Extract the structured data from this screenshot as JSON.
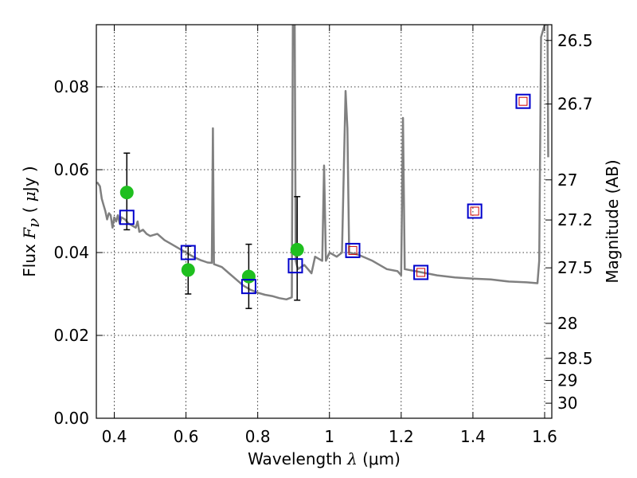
{
  "chart_data": {
    "type": "scatter",
    "title": "",
    "xlabel": "Wavelength  λ (μm)",
    "xlabel_parts": {
      "text": "Wavelength  ",
      "symbol": "λ",
      "unit": " (μm)"
    },
    "ylabel": "Flux  Fν  ( μJy )",
    "ylabel_parts": {
      "text": "Flux  ",
      "symbol": "F",
      "sub": "ν",
      "unit_open": "  ( ",
      "unit_mu": "μ",
      "unit_rest": "Jy )"
    },
    "y2label": "Magnitude (AB)",
    "xlim": [
      0.35,
      1.62
    ],
    "ylim": [
      0.0,
      0.095
    ],
    "grid": true,
    "x_ticks": [
      0.4,
      0.6,
      0.8,
      1.0,
      1.2,
      1.4,
      1.6
    ],
    "x_tick_labels": [
      "0.4",
      "0.6",
      "0.8",
      "1",
      "1.2",
      "1.4",
      "1.6"
    ],
    "y_ticks": [
      0.0,
      0.02,
      0.04,
      0.06,
      0.08
    ],
    "y_tick_labels": [
      "0.00",
      "0.02",
      "0.04",
      "0.06",
      "0.08"
    ],
    "y2_ticks": [
      {
        "mag": 26.5,
        "label": "26.5"
      },
      {
        "mag": 26.7,
        "label": "26.7"
      },
      {
        "mag": 27.0,
        "label": "27"
      },
      {
        "mag": 27.2,
        "label": "27.2"
      },
      {
        "mag": 27.5,
        "label": "27.5"
      },
      {
        "mag": 28.0,
        "label": "28"
      },
      {
        "mag": 28.5,
        "label": "28.5"
      },
      {
        "mag": 29.0,
        "label": "29"
      },
      {
        "mag": 30.0,
        "label": "30"
      }
    ],
    "colors": {
      "model": "#808080",
      "observed": "#1fbf1f",
      "model_box": "#0000cc",
      "model_box_inner": "#cc0000",
      "errorbar": "#000000"
    },
    "model_spectrum": [
      [
        0.352,
        0.057
      ],
      [
        0.36,
        0.056
      ],
      [
        0.365,
        0.053
      ],
      [
        0.37,
        0.0515
      ],
      [
        0.375,
        0.05
      ],
      [
        0.38,
        0.048
      ],
      [
        0.385,
        0.0495
      ],
      [
        0.39,
        0.049
      ],
      [
        0.395,
        0.046
      ],
      [
        0.4,
        0.0485
      ],
      [
        0.405,
        0.0475
      ],
      [
        0.41,
        0.049
      ],
      [
        0.415,
        0.047
      ],
      [
        0.42,
        0.0485
      ],
      [
        0.43,
        0.048
      ],
      [
        0.44,
        0.047
      ],
      [
        0.45,
        0.0465
      ],
      [
        0.46,
        0.046
      ],
      [
        0.465,
        0.0475
      ],
      [
        0.47,
        0.045
      ],
      [
        0.48,
        0.0455
      ],
      [
        0.49,
        0.0445
      ],
      [
        0.5,
        0.044
      ],
      [
        0.52,
        0.0445
      ],
      [
        0.54,
        0.043
      ],
      [
        0.56,
        0.042
      ],
      [
        0.58,
        0.041
      ],
      [
        0.6,
        0.04
      ],
      [
        0.62,
        0.039
      ],
      [
        0.64,
        0.0382
      ],
      [
        0.66,
        0.0376
      ],
      [
        0.672,
        0.0375
      ],
      [
        0.675,
        0.07
      ],
      [
        0.678,
        0.0372
      ],
      [
        0.7,
        0.0365
      ],
      [
        0.72,
        0.035
      ],
      [
        0.74,
        0.0335
      ],
      [
        0.76,
        0.032
      ],
      [
        0.78,
        0.031
      ],
      [
        0.8,
        0.0303
      ],
      [
        0.82,
        0.0298
      ],
      [
        0.84,
        0.0295
      ],
      [
        0.86,
        0.029
      ],
      [
        0.88,
        0.0287
      ],
      [
        0.895,
        0.0292
      ],
      [
        0.898,
        0.095
      ],
      [
        0.903,
        0.095
      ],
      [
        0.906,
        0.038
      ],
      [
        0.912,
        0.036
      ],
      [
        0.93,
        0.037
      ],
      [
        0.95,
        0.035
      ],
      [
        0.96,
        0.039
      ],
      [
        0.98,
        0.038
      ],
      [
        0.985,
        0.061
      ],
      [
        0.99,
        0.038
      ],
      [
        1.0,
        0.04
      ],
      [
        1.02,
        0.039
      ],
      [
        1.035,
        0.04
      ],
      [
        1.04,
        0.06
      ],
      [
        1.045,
        0.079
      ],
      [
        1.05,
        0.07
      ],
      [
        1.055,
        0.04
      ],
      [
        1.08,
        0.0395
      ],
      [
        1.12,
        0.038
      ],
      [
        1.16,
        0.036
      ],
      [
        1.19,
        0.0355
      ],
      [
        1.2,
        0.0345
      ],
      [
        1.205,
        0.0725
      ],
      [
        1.21,
        0.036
      ],
      [
        1.24,
        0.0355
      ],
      [
        1.3,
        0.0345
      ],
      [
        1.35,
        0.034
      ],
      [
        1.4,
        0.0337
      ],
      [
        1.45,
        0.0335
      ],
      [
        1.5,
        0.033
      ],
      [
        1.55,
        0.0328
      ],
      [
        1.58,
        0.0326
      ],
      [
        1.585,
        0.038
      ],
      [
        1.59,
        0.092
      ],
      [
        1.6,
        0.095
      ],
      [
        1.608,
        0.095
      ],
      [
        1.61,
        0.063
      ]
    ],
    "observed": [
      {
        "x": 0.435,
        "y": 0.0545,
        "err_low": 0.0455,
        "err_high": 0.064
      },
      {
        "x": 0.606,
        "y": 0.0358,
        "err_low": 0.03,
        "err_high": 0.0415
      },
      {
        "x": 0.775,
        "y": 0.0342,
        "err_low": 0.0265,
        "err_high": 0.042
      },
      {
        "x": 0.91,
        "y": 0.0407,
        "err_low": 0.0285,
        "err_high": 0.0535
      }
    ],
    "model_photometry": [
      {
        "x": 0.435,
        "y": 0.0485
      },
      {
        "x": 0.606,
        "y": 0.04
      },
      {
        "x": 0.775,
        "y": 0.0318
      },
      {
        "x": 0.905,
        "y": 0.0368
      },
      {
        "x": 1.065,
        "y": 0.0405
      },
      {
        "x": 1.255,
        "y": 0.0352
      },
      {
        "x": 1.405,
        "y": 0.05
      },
      {
        "x": 1.54,
        "y": 0.0765
      }
    ]
  }
}
